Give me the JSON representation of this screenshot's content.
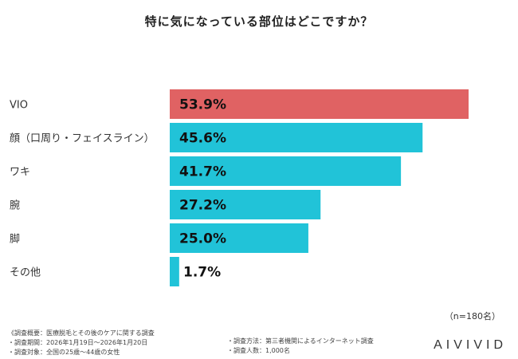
{
  "title": "特に気になっている部位はどこですか？",
  "sample_note": "（n=180名）",
  "footer": {
    "left": [
      "《調査概要：医療脱毛とその後のケアに関する調査",
      "・調査期間：2026年1月19日〜2026年1月20日",
      "・調査対象：全国の25歳〜44歳の女性"
    ],
    "mid": [
      "・調査方法：第三者機関によるインターネット調査",
      "・調査人数：1,000名"
    ]
  },
  "logo": "AIVIVID",
  "colors": {
    "highlight": "#e06263",
    "bar": "#21c3d8"
  },
  "chart_data": {
    "type": "bar",
    "orientation": "horizontal",
    "categories": [
      "VIO",
      "顔（口周り・フェイスライン）",
      "ワキ",
      "腕",
      "脚",
      "その他"
    ],
    "values": [
      53.9,
      45.6,
      41.7,
      27.2,
      25.0,
      1.7
    ],
    "value_labels": [
      "53.9%",
      "45.6%",
      "41.7%",
      "27.2%",
      "25.0%",
      "1.7%"
    ],
    "unit": "%",
    "xlim": [
      0,
      55
    ],
    "highlight_index": 0,
    "grid": false,
    "legend": "none"
  }
}
